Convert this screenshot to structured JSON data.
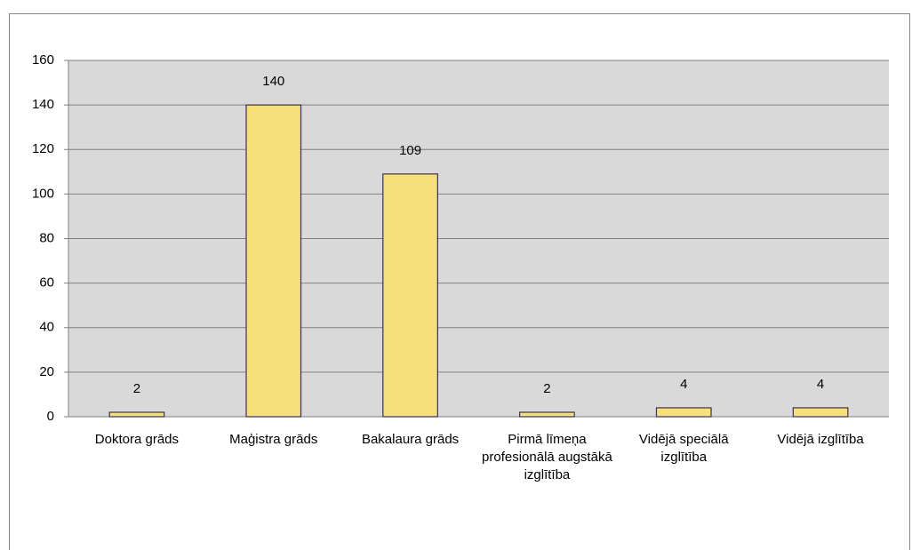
{
  "chart_data": {
    "type": "bar",
    "categories": [
      "Doktora grāds",
      "Maģistra grāds",
      "Bakalaura grāds",
      "Pirmā līmeņa profesionālā augstākā izglītība",
      "Vidējā speciālā izglītība",
      "Vidējā izglītība"
    ],
    "values": [
      2,
      140,
      109,
      2,
      4,
      4
    ],
    "color": "#f5e07a",
    "ylim": [
      0,
      160
    ],
    "yticks": [
      0,
      20,
      40,
      60,
      80,
      100,
      120,
      140,
      160
    ],
    "grid": true
  }
}
